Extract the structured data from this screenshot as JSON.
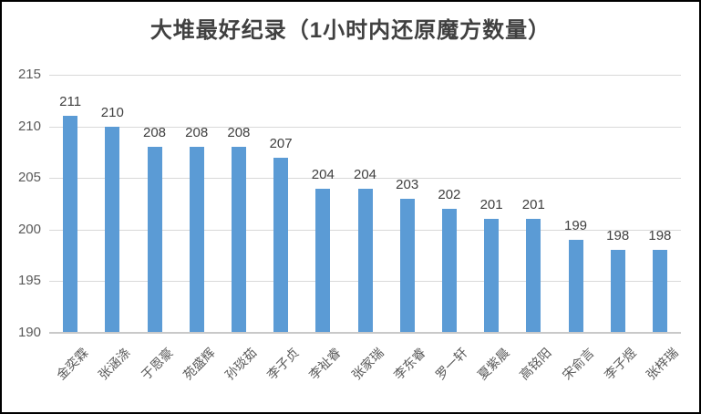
{
  "colors": {
    "bar": "#5b9bd5",
    "gridline": "#d9d9d9",
    "axis_line": "#c9c9c9",
    "title_text": "#404040",
    "value_label_text": "#404040",
    "axis_label_text": "#595959",
    "frame_border": "#000000",
    "background": "#ffffff"
  },
  "chart_data": {
    "type": "bar",
    "title": "大堆最好纪录（1小时内还原魔方数量）",
    "categories": [
      "金奕霖",
      "张涵涤",
      "于恩豪",
      "苑盛辉",
      "孙琰茹",
      "李子贞",
      "李祉睿",
      "张家瑞",
      "李东睿",
      "罗一轩",
      "夏紫晨",
      "高铭阳",
      "宋俞言",
      "李子煜",
      "张梓瑞"
    ],
    "values": [
      211,
      210,
      208,
      208,
      208,
      207,
      204,
      204,
      203,
      202,
      201,
      201,
      199,
      198,
      198
    ],
    "xlabel": "",
    "ylabel": "",
    "ylim": [
      190,
      215
    ],
    "yticks": [
      190,
      195,
      200,
      205,
      210,
      215
    ],
    "grid": true,
    "legend": "none",
    "data_labels": true,
    "bar_label_rotation_deg": -45
  }
}
